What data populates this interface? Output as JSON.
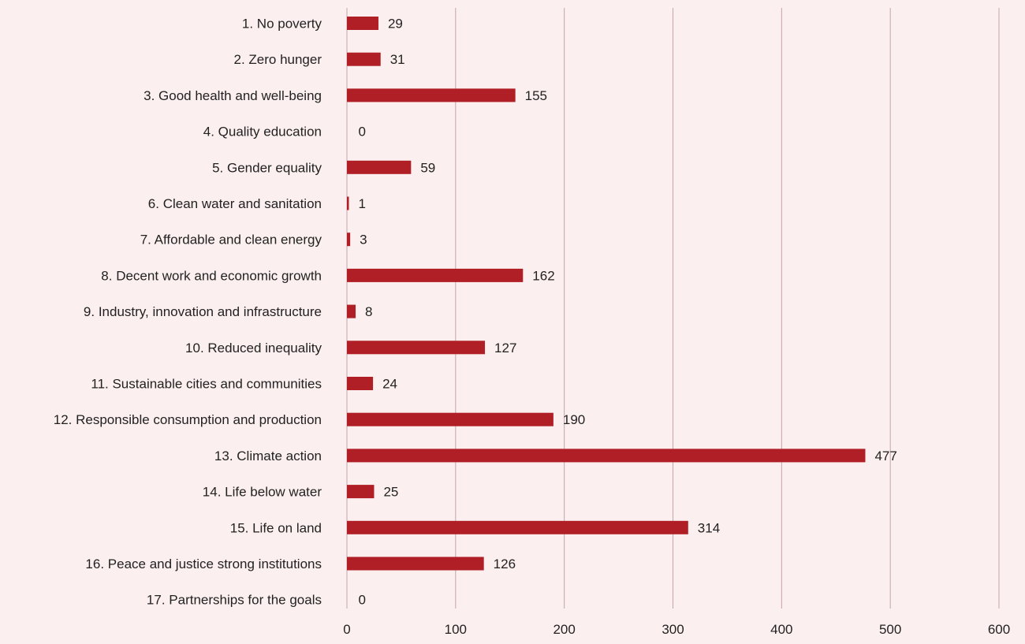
{
  "chart_data": {
    "type": "bar",
    "orientation": "horizontal",
    "categories": [
      "1. No poverty",
      "2. Zero hunger",
      "3. Good health and well-being",
      "4. Quality education",
      "5. Gender equality",
      "6. Clean water and sanitation",
      "7. Affordable and clean energy",
      "8. Decent work and economic growth",
      "9. Industry, innovation and infrastructure",
      "10. Reduced inequality",
      "11. Sustainable cities and communities",
      "12. Responsible consumption and production",
      "13. Climate action",
      "14. Life below water",
      "15. Life on land",
      "16. Peace and justice strong institutions",
      "17. Partnerships for the goals"
    ],
    "values": [
      29,
      31,
      155,
      0,
      59,
      1,
      3,
      162,
      8,
      127,
      24,
      190,
      477,
      25,
      314,
      126,
      0
    ],
    "xlim": [
      0,
      600
    ],
    "xticks": [
      "0",
      "100",
      "200",
      "300",
      "400",
      "500",
      "600"
    ],
    "grid": true,
    "legend": false,
    "colors": {
      "bar": "#b01f25",
      "gridline": "#c4a4a8",
      "background": "#fcefef",
      "text": "#222222"
    }
  }
}
